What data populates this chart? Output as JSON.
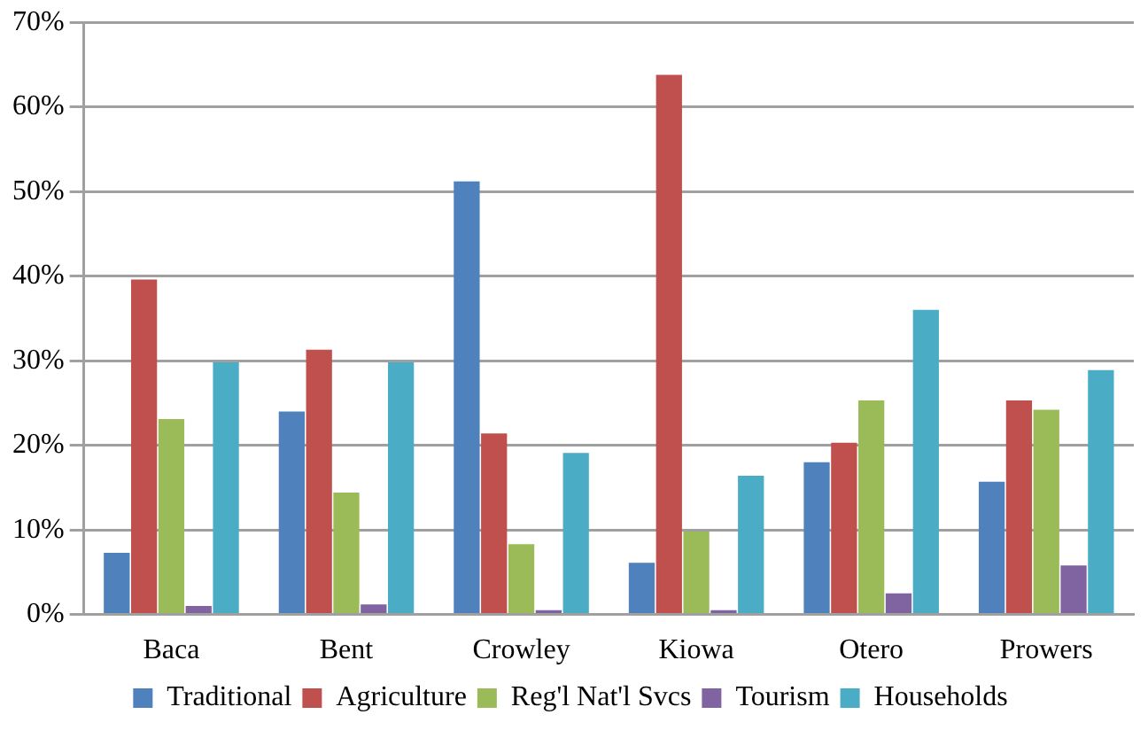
{
  "chart_data": {
    "type": "bar",
    "categories": [
      "Baca",
      "Bent",
      "Crowley",
      "Kiowa",
      "Otero",
      "Prowers"
    ],
    "series": [
      {
        "name": "Traditional",
        "color": "#4f81bd",
        "values": [
          7.3,
          24,
          51.2,
          6.1,
          18,
          15.7
        ]
      },
      {
        "name": "Agriculture",
        "color": "#c0504d",
        "values": [
          39.6,
          31.3,
          21.4,
          63.8,
          20.3,
          25.3
        ]
      },
      {
        "name": "Reg'l Nat'l Svcs",
        "color": "#9bbb59",
        "values": [
          23.1,
          14.4,
          8.3,
          9.8,
          25.3,
          24.2
        ]
      },
      {
        "name": "Tourism",
        "color": "#8064a2",
        "values": [
          1,
          1.2,
          0.5,
          0.5,
          2.5,
          5.8
        ]
      },
      {
        "name": "Households",
        "color": "#4bacc6",
        "values": [
          29.8,
          29.8,
          19.1,
          16.4,
          36,
          28.9
        ]
      }
    ],
    "ylim": [
      0,
      70
    ],
    "yticks": [
      {
        "value": 0,
        "label": "0%"
      },
      {
        "value": 10,
        "label": "10%"
      },
      {
        "value": 20,
        "label": "20%"
      },
      {
        "value": 30,
        "label": "30%"
      },
      {
        "value": 40,
        "label": "40%"
      },
      {
        "value": 50,
        "label": "50%"
      },
      {
        "value": 60,
        "label": "60%"
      },
      {
        "value": 70,
        "label": "70%"
      }
    ],
    "grid": "y",
    "legend": "bottom"
  }
}
